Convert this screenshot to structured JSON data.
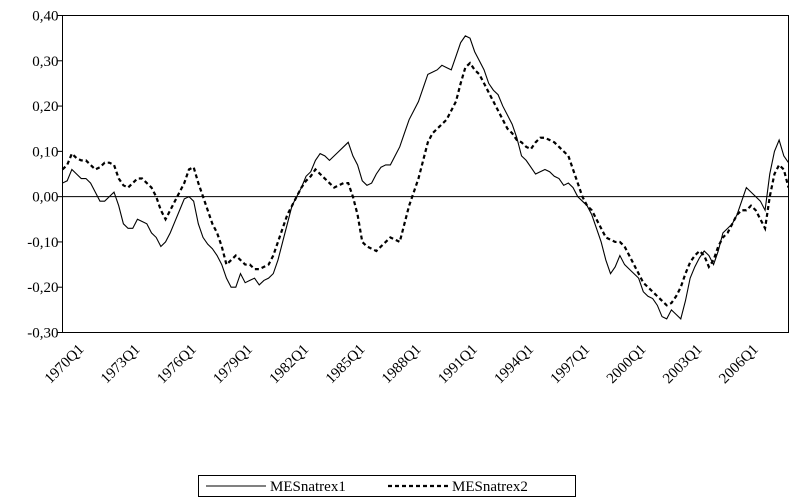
{
  "chart_data": {
    "type": "line",
    "categories": [
      "1970Q1",
      null,
      null,
      null,
      null,
      null,
      null,
      null,
      null,
      null,
      null,
      null,
      "1973Q1",
      null,
      null,
      null,
      null,
      null,
      null,
      null,
      null,
      null,
      null,
      null,
      "1976Q1",
      null,
      null,
      null,
      null,
      null,
      null,
      null,
      null,
      null,
      null,
      null,
      "1979Q1",
      null,
      null,
      null,
      null,
      null,
      null,
      null,
      null,
      null,
      null,
      null,
      "1982Q1",
      null,
      null,
      null,
      null,
      null,
      null,
      null,
      null,
      null,
      null,
      null,
      "1985Q1",
      null,
      null,
      null,
      null,
      null,
      null,
      null,
      null,
      null,
      null,
      null,
      "1988Q1",
      null,
      null,
      null,
      null,
      null,
      null,
      null,
      null,
      null,
      null,
      null,
      "1991Q1",
      null,
      null,
      null,
      null,
      null,
      null,
      null,
      null,
      null,
      null,
      null,
      "1994Q1",
      null,
      null,
      null,
      null,
      null,
      null,
      null,
      null,
      null,
      null,
      null,
      "1997Q1",
      null,
      null,
      null,
      null,
      null,
      null,
      null,
      null,
      null,
      null,
      null,
      "2000Q1",
      null,
      null,
      null,
      null,
      null,
      null,
      null,
      null,
      null,
      null,
      null,
      "2003Q1",
      null,
      null,
      null,
      null,
      null,
      null,
      null,
      null,
      null,
      null,
      null,
      "2006Q1",
      null,
      null,
      null,
      null,
      null,
      null,
      null,
      null,
      null,
      null,
      null
    ],
    "series": [
      {
        "name": "MESnatrex1",
        "color": "#000000",
        "style": "solid",
        "values": [
          0.03,
          0.035,
          0.06,
          0.05,
          0.04,
          0.04,
          0.03,
          0.01,
          -0.01,
          -0.01,
          0.0,
          0.01,
          -0.02,
          -0.06,
          -0.07,
          -0.07,
          -0.05,
          -0.055,
          -0.06,
          -0.08,
          -0.09,
          -0.11,
          -0.1,
          -0.08,
          -0.055,
          -0.03,
          -0.005,
          0.0,
          -0.01,
          -0.06,
          -0.09,
          -0.105,
          -0.115,
          -0.13,
          -0.15,
          -0.18,
          -0.2,
          -0.2,
          -0.17,
          -0.19,
          -0.185,
          -0.18,
          -0.195,
          -0.185,
          -0.18,
          -0.17,
          -0.14,
          -0.1,
          -0.06,
          -0.02,
          0.0,
          0.02,
          0.045,
          0.055,
          0.08,
          0.095,
          0.09,
          0.08,
          0.09,
          0.1,
          0.11,
          0.12,
          0.09,
          0.07,
          0.035,
          0.025,
          0.03,
          0.05,
          0.065,
          0.07,
          0.07,
          0.09,
          0.11,
          0.14,
          0.17,
          0.19,
          0.21,
          0.24,
          0.27,
          0.275,
          0.28,
          0.29,
          0.285,
          0.28,
          0.31,
          0.34,
          0.355,
          0.35,
          0.32,
          0.3,
          0.28,
          0.25,
          0.235,
          0.225,
          0.2,
          0.18,
          0.16,
          0.13,
          0.09,
          0.08,
          0.065,
          0.05,
          0.055,
          0.06,
          0.055,
          0.045,
          0.04,
          0.025,
          0.03,
          0.02,
          0.0,
          -0.01,
          -0.02,
          -0.04,
          -0.07,
          -0.1,
          -0.14,
          -0.17,
          -0.155,
          -0.13,
          -0.15,
          -0.16,
          -0.17,
          -0.18,
          -0.21,
          -0.22,
          -0.225,
          -0.24,
          -0.265,
          -0.27,
          -0.25,
          -0.26,
          -0.27,
          -0.23,
          -0.18,
          -0.155,
          -0.135,
          -0.12,
          -0.13,
          -0.15,
          -0.12,
          -0.08,
          -0.07,
          -0.06,
          -0.04,
          -0.01,
          0.02,
          0.01,
          0.0,
          -0.01,
          -0.03,
          0.05,
          0.1,
          0.125,
          0.09,
          0.075
        ]
      },
      {
        "name": "MESnatrex2",
        "color": "#000000",
        "style": "dashed",
        "values": [
          0.06,
          0.07,
          0.095,
          0.085,
          0.08,
          0.08,
          0.07,
          0.06,
          0.065,
          0.075,
          0.075,
          0.07,
          0.04,
          0.025,
          0.02,
          0.03,
          0.04,
          0.04,
          0.03,
          0.02,
          0.0,
          -0.03,
          -0.05,
          -0.03,
          -0.01,
          0.01,
          0.03,
          0.06,
          0.065,
          0.03,
          0.0,
          -0.03,
          -0.06,
          -0.08,
          -0.11,
          -0.15,
          -0.14,
          -0.13,
          -0.14,
          -0.15,
          -0.15,
          -0.16,
          -0.16,
          -0.155,
          -0.15,
          -0.13,
          -0.1,
          -0.07,
          -0.04,
          -0.02,
          0.0,
          0.02,
          0.035,
          0.045,
          0.06,
          0.05,
          0.04,
          0.03,
          0.02,
          0.025,
          0.03,
          0.03,
          0.0,
          -0.04,
          -0.1,
          -0.11,
          -0.115,
          -0.12,
          -0.11,
          -0.1,
          -0.09,
          -0.095,
          -0.1,
          -0.06,
          -0.02,
          0.01,
          0.04,
          0.08,
          0.12,
          0.14,
          0.15,
          0.16,
          0.17,
          0.19,
          0.21,
          0.25,
          0.285,
          0.295,
          0.28,
          0.27,
          0.25,
          0.23,
          0.21,
          0.19,
          0.17,
          0.15,
          0.14,
          0.125,
          0.12,
          0.11,
          0.105,
          0.12,
          0.13,
          0.13,
          0.125,
          0.12,
          0.11,
          0.1,
          0.09,
          0.06,
          0.03,
          0.0,
          -0.02,
          -0.03,
          -0.05,
          -0.07,
          -0.09,
          -0.095,
          -0.1,
          -0.1,
          -0.11,
          -0.13,
          -0.15,
          -0.17,
          -0.19,
          -0.2,
          -0.21,
          -0.22,
          -0.23,
          -0.24,
          -0.235,
          -0.22,
          -0.2,
          -0.17,
          -0.145,
          -0.13,
          -0.12,
          -0.13,
          -0.155,
          -0.14,
          -0.11,
          -0.09,
          -0.08,
          -0.06,
          -0.04,
          -0.03,
          -0.03,
          -0.02,
          -0.03,
          -0.05,
          -0.07,
          0.0,
          0.05,
          0.07,
          0.06,
          0.02
        ]
      }
    ],
    "ylim": [
      -0.3,
      0.4
    ],
    "yticks": [
      {
        "value": -0.3,
        "label": "-0,30"
      },
      {
        "value": -0.2,
        "label": "-0,20"
      },
      {
        "value": -0.1,
        "label": "-0,10"
      },
      {
        "value": 0,
        "label": "0,00"
      },
      {
        "value": 0.1,
        "label": "0,10"
      },
      {
        "value": 0.2,
        "label": "0,20"
      },
      {
        "value": 0.3,
        "label": "0,30"
      },
      {
        "value": 0.4,
        "label": "0,40"
      }
    ],
    "legend": "bottom"
  }
}
